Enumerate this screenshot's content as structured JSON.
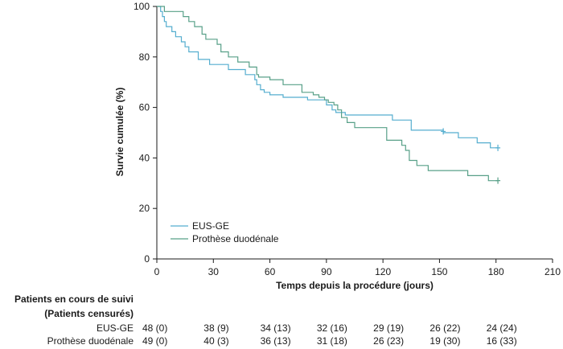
{
  "chart_data": {
    "type": "line",
    "subtype": "kaplan-meier step",
    "xlabel": "Temps depuis la procédure (jours)",
    "ylabel": "Survie cumulée (%)",
    "xlim": [
      0,
      210
    ],
    "ylim": [
      0,
      100
    ],
    "x_ticks": [
      0,
      30,
      60,
      90,
      120,
      150,
      180,
      210
    ],
    "y_ticks": [
      0,
      20,
      40,
      60,
      80,
      100
    ],
    "grid": false,
    "legend_position": "bottom-left",
    "series": [
      {
        "name": "EUS-GE",
        "color": "#55aecf",
        "x": [
          0,
          2,
          3,
          4,
          5,
          8,
          10,
          13,
          15,
          17,
          22,
          28,
          38,
          47,
          52,
          53,
          55,
          57,
          60,
          67,
          80,
          90,
          93,
          95,
          100,
          125,
          135,
          152,
          160,
          170,
          177,
          181
        ],
        "y": [
          100,
          98,
          96,
          94,
          92,
          90,
          88,
          86,
          84,
          82,
          79,
          77,
          75,
          73,
          71,
          69,
          67,
          66,
          65,
          64,
          63,
          61,
          59,
          58,
          57,
          55,
          51,
          50,
          48,
          46,
          44,
          44
        ],
        "censored": [
          [
            152,
            50.5
          ],
          [
            181,
            44
          ]
        ]
      },
      {
        "name": "Prothèse duodénale",
        "color": "#58a088",
        "x": [
          0,
          4,
          6,
          14,
          17,
          20,
          24,
          26,
          32,
          34,
          38,
          43,
          49,
          53,
          54,
          60,
          67,
          77,
          83,
          86,
          89,
          91,
          94,
          96,
          98,
          101,
          105,
          122,
          130,
          132,
          134,
          138,
          144,
          150,
          165,
          176,
          181
        ],
        "y": [
          100,
          98,
          98,
          96,
          94,
          92,
          89,
          87,
          85,
          82,
          80,
          78,
          76,
          73,
          72,
          71,
          69,
          66,
          65,
          64,
          63,
          62,
          61,
          59,
          56,
          54,
          52,
          47,
          45,
          43,
          39,
          37,
          35,
          35,
          33,
          31,
          31
        ],
        "censored": [
          [
            181,
            31
          ]
        ]
      }
    ],
    "risk_table": {
      "title_line1": "Patients en cours de suivi",
      "title_line2": "(Patients censurés)",
      "times": [
        0,
        30,
        60,
        90,
        120,
        150,
        180
      ],
      "rows": [
        {
          "label": "EUS-GE",
          "values": [
            "48 (0)",
            "38 (9)",
            "34 (13)",
            "32 (16)",
            "29 (19)",
            "26 (22)",
            "24 (24)"
          ]
        },
        {
          "label": "Prothèse duodénale",
          "values": [
            "49 (0)",
            "40 (3)",
            "36 (13)",
            "31 (18)",
            "26 (23)",
            "19 (30)",
            "16 (33)"
          ]
        }
      ]
    }
  }
}
